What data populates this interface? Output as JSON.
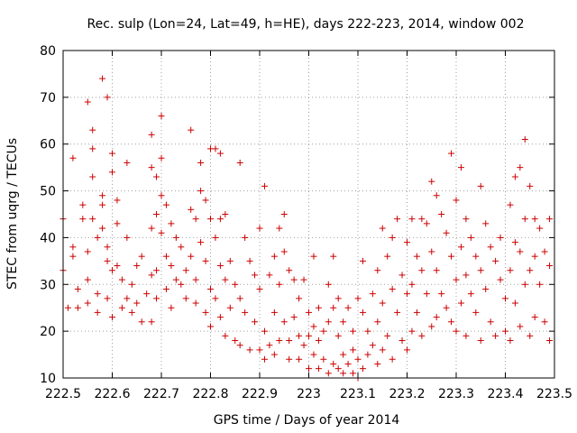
{
  "chart_data": {
    "type": "scatter",
    "title": "Rec. sulp (Lon=24, Lat=49, h=HE), days 222-223, 2014, window 002",
    "xlabel": "GPS time / Days of year 2014",
    "ylabel": "STEC from uqrg / TECUs",
    "xlim": [
      222.5,
      223.5
    ],
    "ylim": [
      10,
      80
    ],
    "grid": true,
    "x_ticks": [
      222.5,
      222.6,
      222.7,
      222.8,
      222.9,
      223.0,
      223.1,
      223.2,
      223.3,
      223.4,
      223.5
    ],
    "x_tick_labels": [
      "222.5",
      "222.6",
      "222.7",
      "222.8",
      "222.9",
      "223",
      "223.1",
      "223.2",
      "223.3",
      "223.4",
      "223.5"
    ],
    "y_ticks": [
      10,
      20,
      30,
      40,
      50,
      60,
      70,
      80
    ],
    "y_tick_labels": [
      "10",
      "20",
      "30",
      "40",
      "50",
      "60",
      "70",
      "80"
    ],
    "marker": "+",
    "color": "#cc0000",
    "series": [
      {
        "name": "STEC",
        "points": [
          [
            222.5,
            44
          ],
          [
            222.5,
            33
          ],
          [
            222.51,
            25
          ],
          [
            222.52,
            57
          ],
          [
            222.52,
            38
          ],
          [
            222.52,
            36
          ],
          [
            222.53,
            29
          ],
          [
            222.53,
            25
          ],
          [
            222.54,
            47
          ],
          [
            222.54,
            44
          ],
          [
            222.55,
            69
          ],
          [
            222.55,
            37
          ],
          [
            222.55,
            31
          ],
          [
            222.55,
            26
          ],
          [
            222.56,
            63
          ],
          [
            222.56,
            59
          ],
          [
            222.56,
            53
          ],
          [
            222.56,
            44
          ],
          [
            222.57,
            40
          ],
          [
            222.57,
            28
          ],
          [
            222.57,
            24
          ],
          [
            222.58,
            74
          ],
          [
            222.58,
            49
          ],
          [
            222.58,
            47
          ],
          [
            222.58,
            42
          ],
          [
            222.59,
            70
          ],
          [
            222.59,
            38
          ],
          [
            222.59,
            35
          ],
          [
            222.59,
            27
          ],
          [
            222.6,
            58
          ],
          [
            222.6,
            54
          ],
          [
            222.6,
            33
          ],
          [
            222.6,
            23
          ],
          [
            222.61,
            48
          ],
          [
            222.61,
            43
          ],
          [
            222.61,
            34
          ],
          [
            222.62,
            31
          ],
          [
            222.62,
            25
          ],
          [
            222.63,
            56
          ],
          [
            222.63,
            40
          ],
          [
            222.63,
            27
          ],
          [
            222.64,
            30
          ],
          [
            222.64,
            24
          ],
          [
            222.65,
            34
          ],
          [
            222.65,
            26
          ],
          [
            222.66,
            36
          ],
          [
            222.66,
            22
          ],
          [
            222.67,
            28
          ],
          [
            222.68,
            62
          ],
          [
            222.68,
            55
          ],
          [
            222.68,
            42
          ],
          [
            222.68,
            32
          ],
          [
            222.68,
            22
          ],
          [
            222.69,
            53
          ],
          [
            222.69,
            45
          ],
          [
            222.69,
            33
          ],
          [
            222.69,
            27
          ],
          [
            222.7,
            66
          ],
          [
            222.7,
            57
          ],
          [
            222.7,
            49
          ],
          [
            222.7,
            41
          ],
          [
            222.71,
            47
          ],
          [
            222.71,
            36
          ],
          [
            222.71,
            29
          ],
          [
            222.72,
            43
          ],
          [
            222.72,
            34
          ],
          [
            222.72,
            25
          ],
          [
            222.73,
            40
          ],
          [
            222.73,
            31
          ],
          [
            222.74,
            38
          ],
          [
            222.74,
            30
          ],
          [
            222.75,
            33
          ],
          [
            222.75,
            27
          ],
          [
            222.76,
            63
          ],
          [
            222.76,
            46
          ],
          [
            222.76,
            36
          ],
          [
            222.77,
            44
          ],
          [
            222.77,
            31
          ],
          [
            222.77,
            26
          ],
          [
            222.78,
            56
          ],
          [
            222.78,
            50
          ],
          [
            222.78,
            39
          ],
          [
            222.79,
            48
          ],
          [
            222.79,
            35
          ],
          [
            222.79,
            24
          ],
          [
            222.8,
            59
          ],
          [
            222.8,
            44
          ],
          [
            222.8,
            29
          ],
          [
            222.8,
            21
          ],
          [
            222.81,
            59
          ],
          [
            222.81,
            40
          ],
          [
            222.81,
            27
          ],
          [
            222.82,
            58
          ],
          [
            222.82,
            44
          ],
          [
            222.82,
            34
          ],
          [
            222.82,
            23
          ],
          [
            222.83,
            45
          ],
          [
            222.83,
            31
          ],
          [
            222.83,
            19
          ],
          [
            222.84,
            35
          ],
          [
            222.84,
            25
          ],
          [
            222.85,
            30
          ],
          [
            222.85,
            18
          ],
          [
            222.86,
            56
          ],
          [
            222.86,
            27
          ],
          [
            222.86,
            17
          ],
          [
            222.87,
            40
          ],
          [
            222.87,
            24
          ],
          [
            222.88,
            35
          ],
          [
            222.88,
            16
          ],
          [
            222.89,
            32
          ],
          [
            222.89,
            22
          ],
          [
            222.9,
            42
          ],
          [
            222.9,
            29
          ],
          [
            222.9,
            16
          ],
          [
            222.91,
            51
          ],
          [
            222.91,
            20
          ],
          [
            222.91,
            14
          ],
          [
            222.92,
            32
          ],
          [
            222.92,
            17
          ],
          [
            222.93,
            36
          ],
          [
            222.93,
            24
          ],
          [
            222.93,
            15
          ],
          [
            222.94,
            42
          ],
          [
            222.94,
            30
          ],
          [
            222.94,
            18
          ],
          [
            222.95,
            45
          ],
          [
            222.95,
            37
          ],
          [
            222.95,
            22
          ],
          [
            222.96,
            33
          ],
          [
            222.96,
            18
          ],
          [
            222.96,
            14
          ],
          [
            222.97,
            31
          ],
          [
            222.97,
            23
          ],
          [
            222.98,
            27
          ],
          [
            222.98,
            19
          ],
          [
            222.98,
            14
          ],
          [
            222.99,
            31
          ],
          [
            222.99,
            17
          ],
          [
            223.0,
            24
          ],
          [
            223.0,
            19
          ],
          [
            223.0,
            12
          ],
          [
            223.01,
            36
          ],
          [
            223.01,
            21
          ],
          [
            223.01,
            15
          ],
          [
            223.02,
            25
          ],
          [
            223.02,
            18
          ],
          [
            223.02,
            12
          ],
          [
            223.03,
            20
          ],
          [
            223.03,
            14
          ],
          [
            223.04,
            30
          ],
          [
            223.04,
            22
          ],
          [
            223.04,
            11
          ],
          [
            223.05,
            36
          ],
          [
            223.05,
            25
          ],
          [
            223.05,
            13
          ],
          [
            223.06,
            27
          ],
          [
            223.06,
            19
          ],
          [
            223.06,
            12
          ],
          [
            223.07,
            22
          ],
          [
            223.07,
            15
          ],
          [
            223.07,
            11
          ],
          [
            223.08,
            25
          ],
          [
            223.08,
            13
          ],
          [
            223.09,
            20
          ],
          [
            223.09,
            16
          ],
          [
            223.09,
            11
          ],
          [
            223.1,
            27
          ],
          [
            223.1,
            14
          ],
          [
            223.1,
            10
          ],
          [
            223.11,
            35
          ],
          [
            223.11,
            24
          ],
          [
            223.11,
            12
          ],
          [
            223.12,
            20
          ],
          [
            223.12,
            15
          ],
          [
            223.13,
            28
          ],
          [
            223.13,
            17
          ],
          [
            223.14,
            33
          ],
          [
            223.14,
            22
          ],
          [
            223.14,
            13
          ],
          [
            223.15,
            42
          ],
          [
            223.15,
            26
          ],
          [
            223.15,
            16
          ],
          [
            223.16,
            36
          ],
          [
            223.16,
            19
          ],
          [
            223.17,
            40
          ],
          [
            223.17,
            29
          ],
          [
            223.17,
            14
          ],
          [
            223.18,
            44
          ],
          [
            223.18,
            24
          ],
          [
            223.19,
            32
          ],
          [
            223.19,
            18
          ],
          [
            223.2,
            39
          ],
          [
            223.2,
            28
          ],
          [
            223.2,
            16
          ],
          [
            223.21,
            44
          ],
          [
            223.21,
            30
          ],
          [
            223.21,
            20
          ],
          [
            223.22,
            36
          ],
          [
            223.22,
            24
          ],
          [
            223.23,
            44
          ],
          [
            223.23,
            33
          ],
          [
            223.23,
            19
          ],
          [
            223.24,
            43
          ],
          [
            223.24,
            28
          ],
          [
            223.25,
            52
          ],
          [
            223.25,
            37
          ],
          [
            223.25,
            21
          ],
          [
            223.26,
            49
          ],
          [
            223.26,
            33
          ],
          [
            223.26,
            23
          ],
          [
            223.27,
            45
          ],
          [
            223.27,
            28
          ],
          [
            223.28,
            41
          ],
          [
            223.28,
            25
          ],
          [
            223.29,
            58
          ],
          [
            223.29,
            36
          ],
          [
            223.29,
            22
          ],
          [
            223.3,
            48
          ],
          [
            223.3,
            31
          ],
          [
            223.3,
            20
          ],
          [
            223.31,
            55
          ],
          [
            223.31,
            38
          ],
          [
            223.31,
            26
          ],
          [
            223.32,
            44
          ],
          [
            223.32,
            32
          ],
          [
            223.32,
            19
          ],
          [
            223.33,
            40
          ],
          [
            223.33,
            28
          ],
          [
            223.34,
            36
          ],
          [
            223.34,
            24
          ],
          [
            223.35,
            51
          ],
          [
            223.35,
            33
          ],
          [
            223.35,
            18
          ],
          [
            223.36,
            43
          ],
          [
            223.36,
            29
          ],
          [
            223.37,
            38
          ],
          [
            223.37,
            22
          ],
          [
            223.38,
            35
          ],
          [
            223.38,
            19
          ],
          [
            223.39,
            40
          ],
          [
            223.39,
            31
          ],
          [
            223.4,
            27
          ],
          [
            223.4,
            20
          ],
          [
            223.41,
            47
          ],
          [
            223.41,
            33
          ],
          [
            223.41,
            18
          ],
          [
            223.42,
            53
          ],
          [
            223.42,
            39
          ],
          [
            223.42,
            26
          ],
          [
            223.43,
            55
          ],
          [
            223.43,
            37
          ],
          [
            223.43,
            21
          ],
          [
            223.44,
            61
          ],
          [
            223.44,
            44
          ],
          [
            223.44,
            30
          ],
          [
            223.45,
            51
          ],
          [
            223.45,
            33
          ],
          [
            223.45,
            19
          ],
          [
            223.46,
            44
          ],
          [
            223.46,
            36
          ],
          [
            223.46,
            23
          ],
          [
            223.47,
            42
          ],
          [
            223.47,
            30
          ],
          [
            223.48,
            37
          ],
          [
            223.48,
            22
          ],
          [
            223.49,
            44
          ],
          [
            223.49,
            34
          ],
          [
            223.49,
            18
          ]
        ]
      }
    ]
  }
}
